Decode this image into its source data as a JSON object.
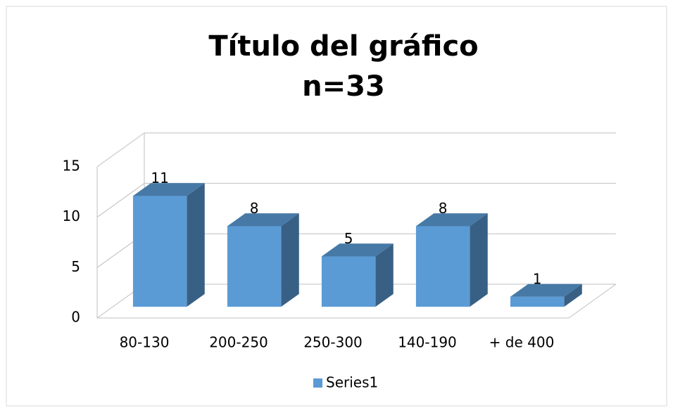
{
  "chart_data": {
    "type": "bar3d",
    "title": "Título del gráfico",
    "subtitle": "n=33",
    "categories": [
      "80-130",
      "200-250",
      "250-300",
      "140-190",
      "+ de 400"
    ],
    "series": [
      {
        "name": "Series1",
        "color": "#5b9bd5",
        "values": [
          11,
          8,
          5,
          8,
          1
        ]
      }
    ],
    "ylim": [
      0,
      15
    ],
    "yticks": [
      0,
      5,
      10,
      15
    ],
    "grid": true,
    "legend": "bottom"
  }
}
